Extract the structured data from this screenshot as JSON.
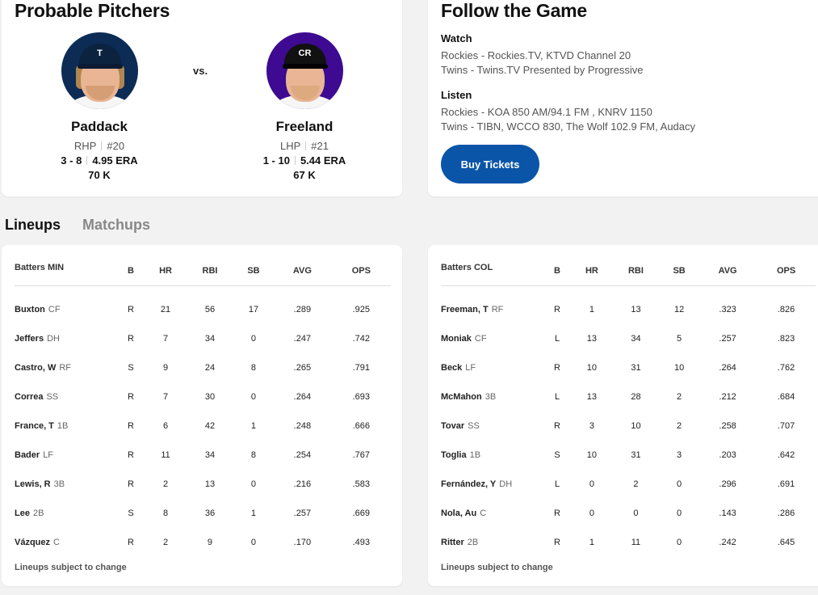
{
  "probable_pitchers": {
    "title": "Probable Pitchers",
    "vs": "vs.",
    "home": {
      "name": "Paddack",
      "throws": "RHP",
      "number": "#20",
      "record": "3 - 8",
      "era": "4.95 ERA",
      "k": "70 K",
      "cap_logo": "T"
    },
    "away": {
      "name": "Freeland",
      "throws": "LHP",
      "number": "#21",
      "record": "1 - 10",
      "era": "5.44 ERA",
      "k": "67 K",
      "cap_logo": "CR"
    }
  },
  "follow": {
    "title": "Follow the Game",
    "watch_label": "Watch",
    "watch_lines": [
      "Rockies - Rockies.TV, KTVD Channel 20",
      "Twins - Twins.TV Presented by Progressive"
    ],
    "listen_label": "Listen",
    "listen_lines": [
      "Rockies - KOA 850 AM/94.1 FM , KNRV 1150",
      "Twins - TIBN, WCCO 830, The Wolf 102.9 FM, Audacy"
    ],
    "tickets_button": "Buy Tickets"
  },
  "tabs": [
    {
      "label": "Lineups",
      "active": true
    },
    {
      "label": "Matchups",
      "active": false
    }
  ],
  "lineups": {
    "columns": [
      "B",
      "HR",
      "RBI",
      "SB",
      "AVG",
      "OPS"
    ],
    "note": "Lineups subject to change",
    "min": {
      "header": "Batters MIN",
      "rows": [
        {
          "name": "Buxton",
          "pos": "CF",
          "b": "R",
          "hr": "21",
          "rbi": "56",
          "sb": "17",
          "avg": ".289",
          "ops": ".925"
        },
        {
          "name": "Jeffers",
          "pos": "DH",
          "b": "R",
          "hr": "7",
          "rbi": "34",
          "sb": "0",
          "avg": ".247",
          "ops": ".742"
        },
        {
          "name": "Castro, W",
          "pos": "RF",
          "b": "S",
          "hr": "9",
          "rbi": "24",
          "sb": "8",
          "avg": ".265",
          "ops": ".791"
        },
        {
          "name": "Correa",
          "pos": "SS",
          "b": "R",
          "hr": "7",
          "rbi": "30",
          "sb": "0",
          "avg": ".264",
          "ops": ".693"
        },
        {
          "name": "France, T",
          "pos": "1B",
          "b": "R",
          "hr": "6",
          "rbi": "42",
          "sb": "1",
          "avg": ".248",
          "ops": ".666"
        },
        {
          "name": "Bader",
          "pos": "LF",
          "b": "R",
          "hr": "11",
          "rbi": "34",
          "sb": "8",
          "avg": ".254",
          "ops": ".767"
        },
        {
          "name": "Lewis, R",
          "pos": "3B",
          "b": "R",
          "hr": "2",
          "rbi": "13",
          "sb": "0",
          "avg": ".216",
          "ops": ".583"
        },
        {
          "name": "Lee",
          "pos": "2B",
          "b": "S",
          "hr": "8",
          "rbi": "36",
          "sb": "1",
          "avg": ".257",
          "ops": ".669"
        },
        {
          "name": "Vázquez",
          "pos": "C",
          "b": "R",
          "hr": "2",
          "rbi": "9",
          "sb": "0",
          "avg": ".170",
          "ops": ".493"
        }
      ]
    },
    "col": {
      "header": "Batters COL",
      "rows": [
        {
          "name": "Freeman, T",
          "pos": "RF",
          "b": "R",
          "hr": "1",
          "rbi": "13",
          "sb": "12",
          "avg": ".323",
          "ops": ".826"
        },
        {
          "name": "Moniak",
          "pos": "CF",
          "b": "L",
          "hr": "13",
          "rbi": "34",
          "sb": "5",
          "avg": ".257",
          "ops": ".823"
        },
        {
          "name": "Beck",
          "pos": "LF",
          "b": "R",
          "hr": "10",
          "rbi": "31",
          "sb": "10",
          "avg": ".264",
          "ops": ".762"
        },
        {
          "name": "McMahon",
          "pos": "3B",
          "b": "L",
          "hr": "13",
          "rbi": "28",
          "sb": "2",
          "avg": ".212",
          "ops": ".684"
        },
        {
          "name": "Tovar",
          "pos": "SS",
          "b": "R",
          "hr": "3",
          "rbi": "10",
          "sb": "2",
          "avg": ".258",
          "ops": ".707"
        },
        {
          "name": "Toglia",
          "pos": "1B",
          "b": "S",
          "hr": "10",
          "rbi": "31",
          "sb": "3",
          "avg": ".203",
          "ops": ".642"
        },
        {
          "name": "Fernández, Y",
          "pos": "DH",
          "b": "L",
          "hr": "0",
          "rbi": "2",
          "sb": "0",
          "avg": ".296",
          "ops": ".691"
        },
        {
          "name": "Nola, Au",
          "pos": "C",
          "b": "R",
          "hr": "0",
          "rbi": "0",
          "sb": "0",
          "avg": ".143",
          "ops": ".286"
        },
        {
          "name": "Ritter",
          "pos": "2B",
          "b": "R",
          "hr": "1",
          "rbi": "11",
          "sb": "0",
          "avg": ".242",
          "ops": ".645"
        }
      ]
    }
  },
  "colors": {
    "accent": "#0b55a8",
    "twins": "#0c2c56",
    "rockies": "#3d0a91"
  }
}
